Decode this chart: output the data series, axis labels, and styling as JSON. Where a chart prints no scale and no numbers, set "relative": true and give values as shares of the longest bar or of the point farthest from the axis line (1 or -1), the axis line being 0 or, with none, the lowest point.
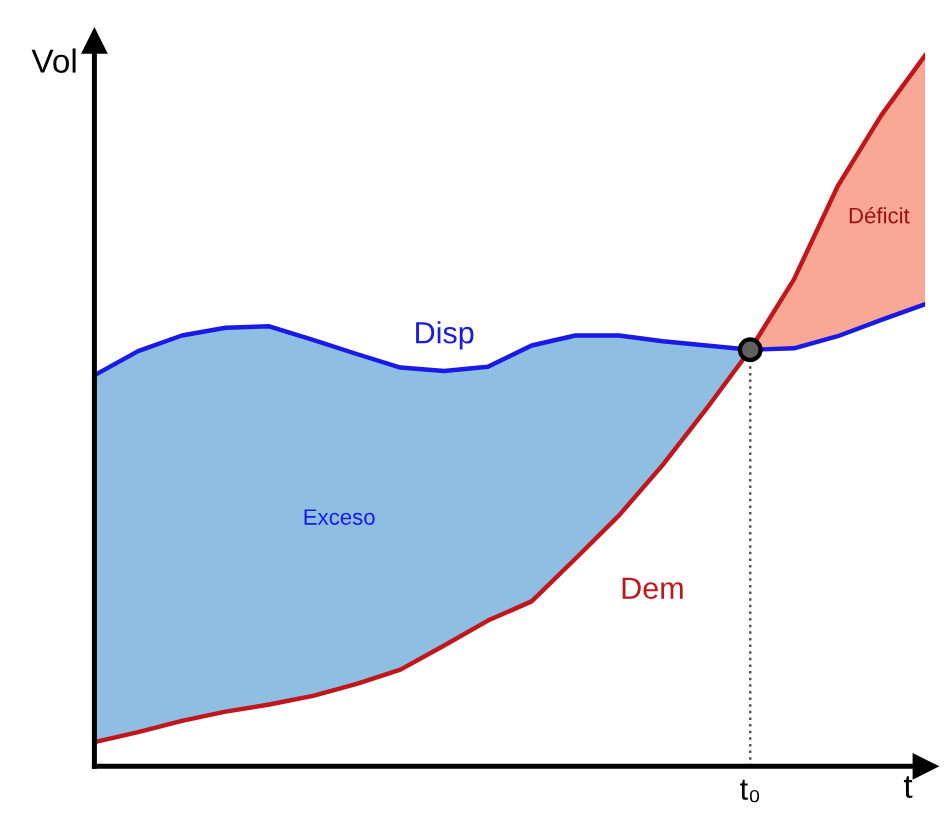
{
  "chart_data": {
    "type": "line",
    "relative": true,
    "xlabel": "t",
    "ylabel": "Vol",
    "marker": "none",
    "line_style": "solid",
    "categories": [
      null,
      null,
      null,
      null,
      null,
      null,
      null,
      null,
      null,
      null,
      null,
      null,
      null,
      null,
      null,
      null,
      null,
      null,
      null,
      null
    ],
    "series": [
      {
        "name": "Disp",
        "color": "#1a1ae6",
        "values": [
          0.55,
          0.584,
          0.606,
          0.617,
          0.619,
          0.6,
          0.58,
          0.561,
          0.556,
          0.562,
          0.592,
          0.606,
          0.606,
          0.598,
          0.592,
          0.586,
          0.588,
          0.605,
          0.628,
          0.65
        ]
      },
      {
        "name": "Dem",
        "color": "#c0161c",
        "values": [
          0.034,
          0.048,
          0.064,
          0.077,
          0.087,
          0.099,
          0.116,
          0.136,
          0.17,
          0.205,
          0.232,
          0.292,
          0.353,
          0.424,
          0.503,
          0.586,
          0.685,
          0.816,
          0.916,
          1.0
        ]
      }
    ],
    "ref_lines": [
      {
        "axis": "x",
        "label": "t₀",
        "color": "#555555",
        "line_style": "dotted"
      }
    ],
    "annotations": [
      "Exceso",
      "Déficit"
    ]
  }
}
